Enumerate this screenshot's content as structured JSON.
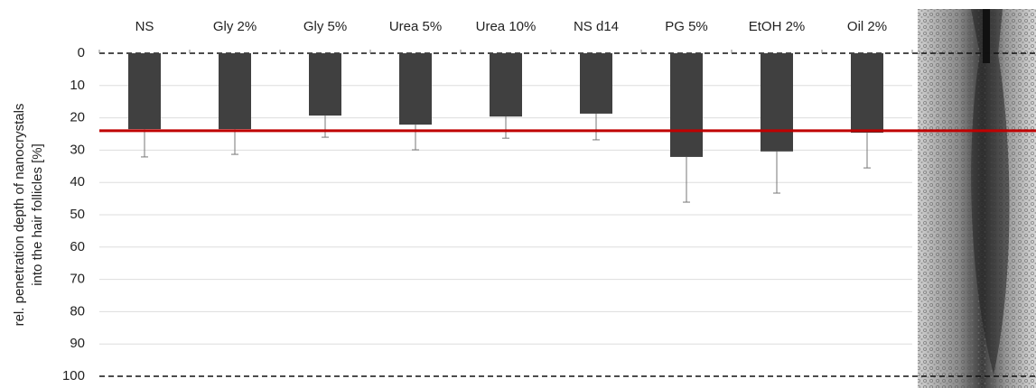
{
  "chart_data": {
    "type": "bar",
    "y_label": [
      "rel. penetration depth of nanocrystals",
      "into the hair follicles [%]"
    ],
    "categories": [
      "NS",
      "Gly 2%",
      "Gly 5%",
      "Urea 5%",
      "Urea 10%",
      "NS d14",
      "PG 5%",
      "EtOH 2%",
      "Oil 2%"
    ],
    "series": [
      {
        "color": "#404040",
        "values": [
          23.5,
          23.5,
          19.3,
          22.1,
          19.6,
          18.7,
          32.1,
          30.4,
          24.6
        ],
        "errors": [
          8.6,
          7.8,
          6.7,
          7.8,
          6.7,
          8.1,
          14,
          12.9,
          10.9
        ]
      }
    ],
    "ylim": [
      0,
      100
    ],
    "y_inverted": true,
    "yticks": [
      0,
      10,
      20,
      30,
      40,
      50,
      60,
      70,
      80,
      90,
      100
    ],
    "grid": true,
    "reference_line": {
      "value": 24,
      "color": "#c00000"
    }
  }
}
